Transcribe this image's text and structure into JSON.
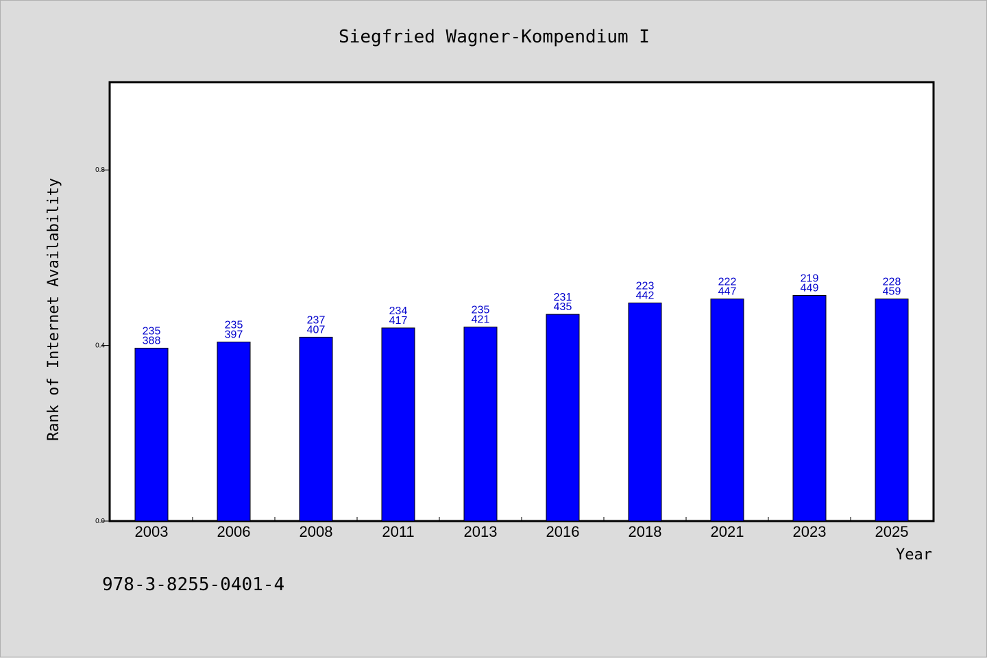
{
  "chart_data": {
    "type": "bar",
    "title": "Siegfried Wagner-Kompendium I",
    "xlabel": "Year",
    "ylabel": "Rank of Internet Availability",
    "categories": [
      "2003",
      "2006",
      "2008",
      "2011",
      "2013",
      "2016",
      "2018",
      "2021",
      "2023",
      "2025"
    ],
    "values": [
      0.394,
      0.408,
      0.419,
      0.44,
      0.442,
      0.471,
      0.497,
      0.506,
      0.514,
      0.506
    ],
    "labels_top": [
      "235",
      "235",
      "237",
      "234",
      "235",
      "231",
      "223",
      "222",
      "219",
      "228"
    ],
    "labels_bottom": [
      "388",
      "397",
      "407",
      "417",
      "421",
      "435",
      "442",
      "447",
      "449",
      "459"
    ],
    "yticks": [
      "0.0",
      "0.4",
      "0.8"
    ],
    "ylim": [
      0,
      1.0
    ],
    "bar_color": "#0000ff",
    "label_color": "#0000cc",
    "grid": false,
    "legend": "none"
  },
  "footer": {
    "isbn": "978-3-8255-0401-4"
  }
}
